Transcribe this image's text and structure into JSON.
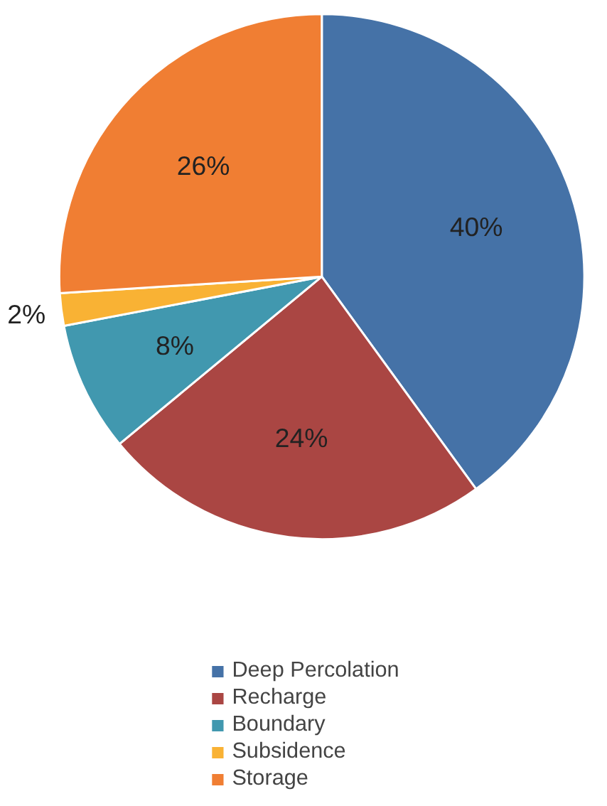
{
  "chart_data": {
    "type": "pie",
    "categories": [
      "Deep Percolation",
      "Recharge",
      "Boundary",
      "Subsidence",
      "Storage"
    ],
    "values": [
      40,
      24,
      8,
      2,
      26
    ],
    "colors": [
      "#4572a7",
      "#aa4643",
      "#4198af",
      "#f9b234",
      "#f07e33"
    ],
    "value_labels": [
      "40%",
      "24%",
      "8%",
      "2%",
      "26%"
    ],
    "legend": "bottom"
  }
}
